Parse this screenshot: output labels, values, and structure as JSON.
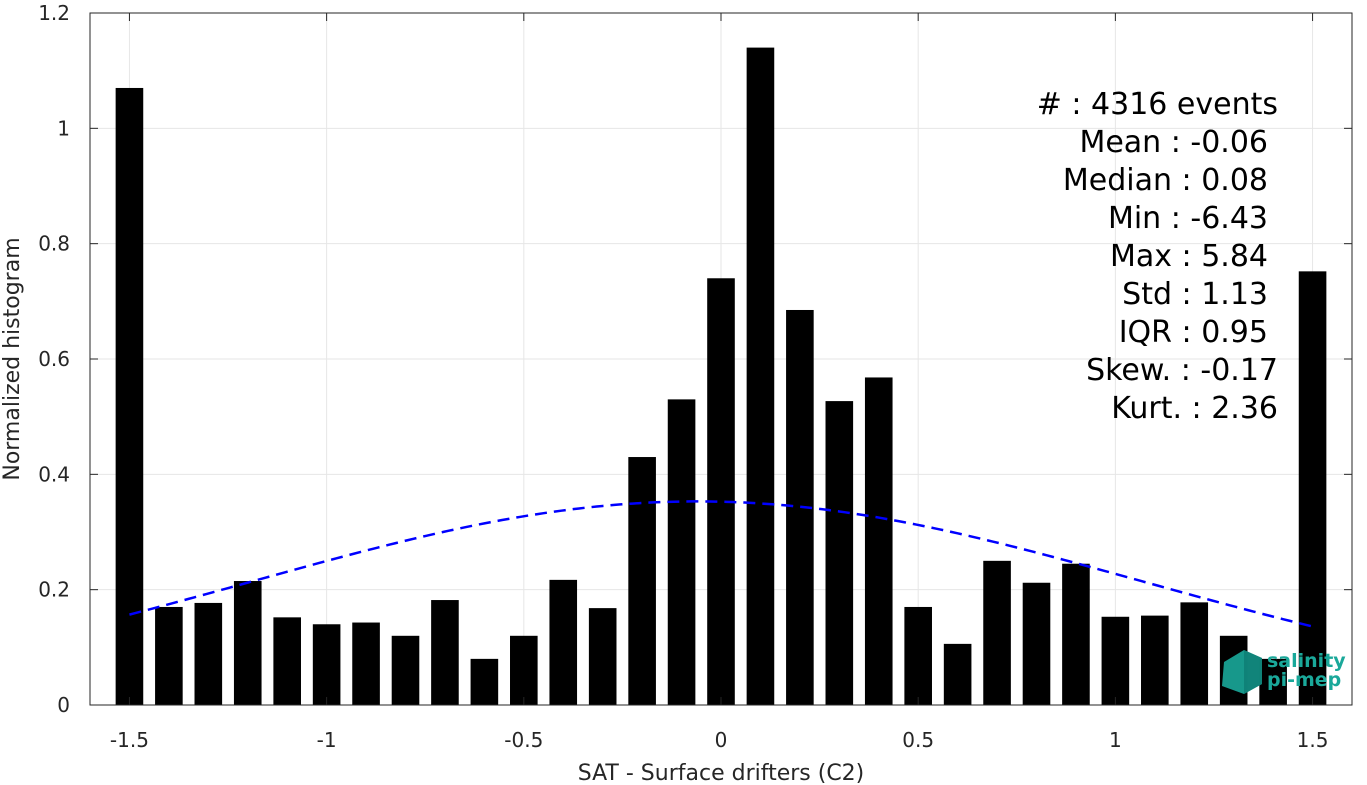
{
  "chart_data": {
    "type": "bar",
    "xlabel": "SAT - Surface drifters (C2)",
    "ylabel": "Normalized histogram",
    "xlim": [
      -1.6,
      1.6
    ],
    "ylim": [
      0,
      1.2
    ],
    "xticks": [
      -1.5,
      -1,
      -0.5,
      0,
      0.5,
      1,
      1.5
    ],
    "xtick_labels": [
      "-1.5",
      "-1",
      "-0.5",
      "0",
      "0.5",
      "1",
      "1.5"
    ],
    "yticks": [
      0,
      0.2,
      0.4,
      0.6,
      0.8,
      1,
      1.2
    ],
    "ytick_labels": [
      "0",
      "0.2",
      "0.4",
      "0.6",
      "0.8",
      "1",
      "1.2"
    ],
    "grid": true,
    "bar_color": "#000000",
    "bar_width": 0.07,
    "bins": [
      -1.5,
      -1.4,
      -1.3,
      -1.2,
      -1.1,
      -1.0,
      -0.9,
      -0.8,
      -0.7,
      -0.6,
      -0.5,
      -0.4,
      -0.3,
      -0.2,
      -0.1,
      0.0,
      0.1,
      0.2,
      0.3,
      0.4,
      0.5,
      0.6,
      0.7,
      0.8,
      0.9,
      1.0,
      1.1,
      1.2,
      1.3,
      1.4,
      1.5
    ],
    "values": [
      1.07,
      0.17,
      0.177,
      0.215,
      0.152,
      0.14,
      0.143,
      0.12,
      0.182,
      0.08,
      0.12,
      0.217,
      0.168,
      0.43,
      0.53,
      0.74,
      1.14,
      0.685,
      0.527,
      0.568,
      0.17,
      0.106,
      0.25,
      0.212,
      0.245,
      0.153,
      0.155,
      0.178,
      0.12,
      0.08,
      0.752
    ],
    "fit": {
      "type": "gaussian",
      "mean": -0.06,
      "std": 1.13,
      "x_range": [
        -1.5,
        1.5
      ],
      "color": "#0000ff",
      "style": "dashed"
    },
    "stats": [
      "#  : 4316 events",
      "Mean : -0.06",
      "Median : 0.08",
      "Min : -6.43",
      "Max : 5.84",
      "Std : 1.13",
      "IQR : 0.95",
      "Skew. : -0.17",
      "Kurt. : 2.36"
    ],
    "stats_placement": "top-right"
  },
  "logo": {
    "line1": "salinity",
    "line2": "pi-mep",
    "color": "#1aa89a"
  }
}
